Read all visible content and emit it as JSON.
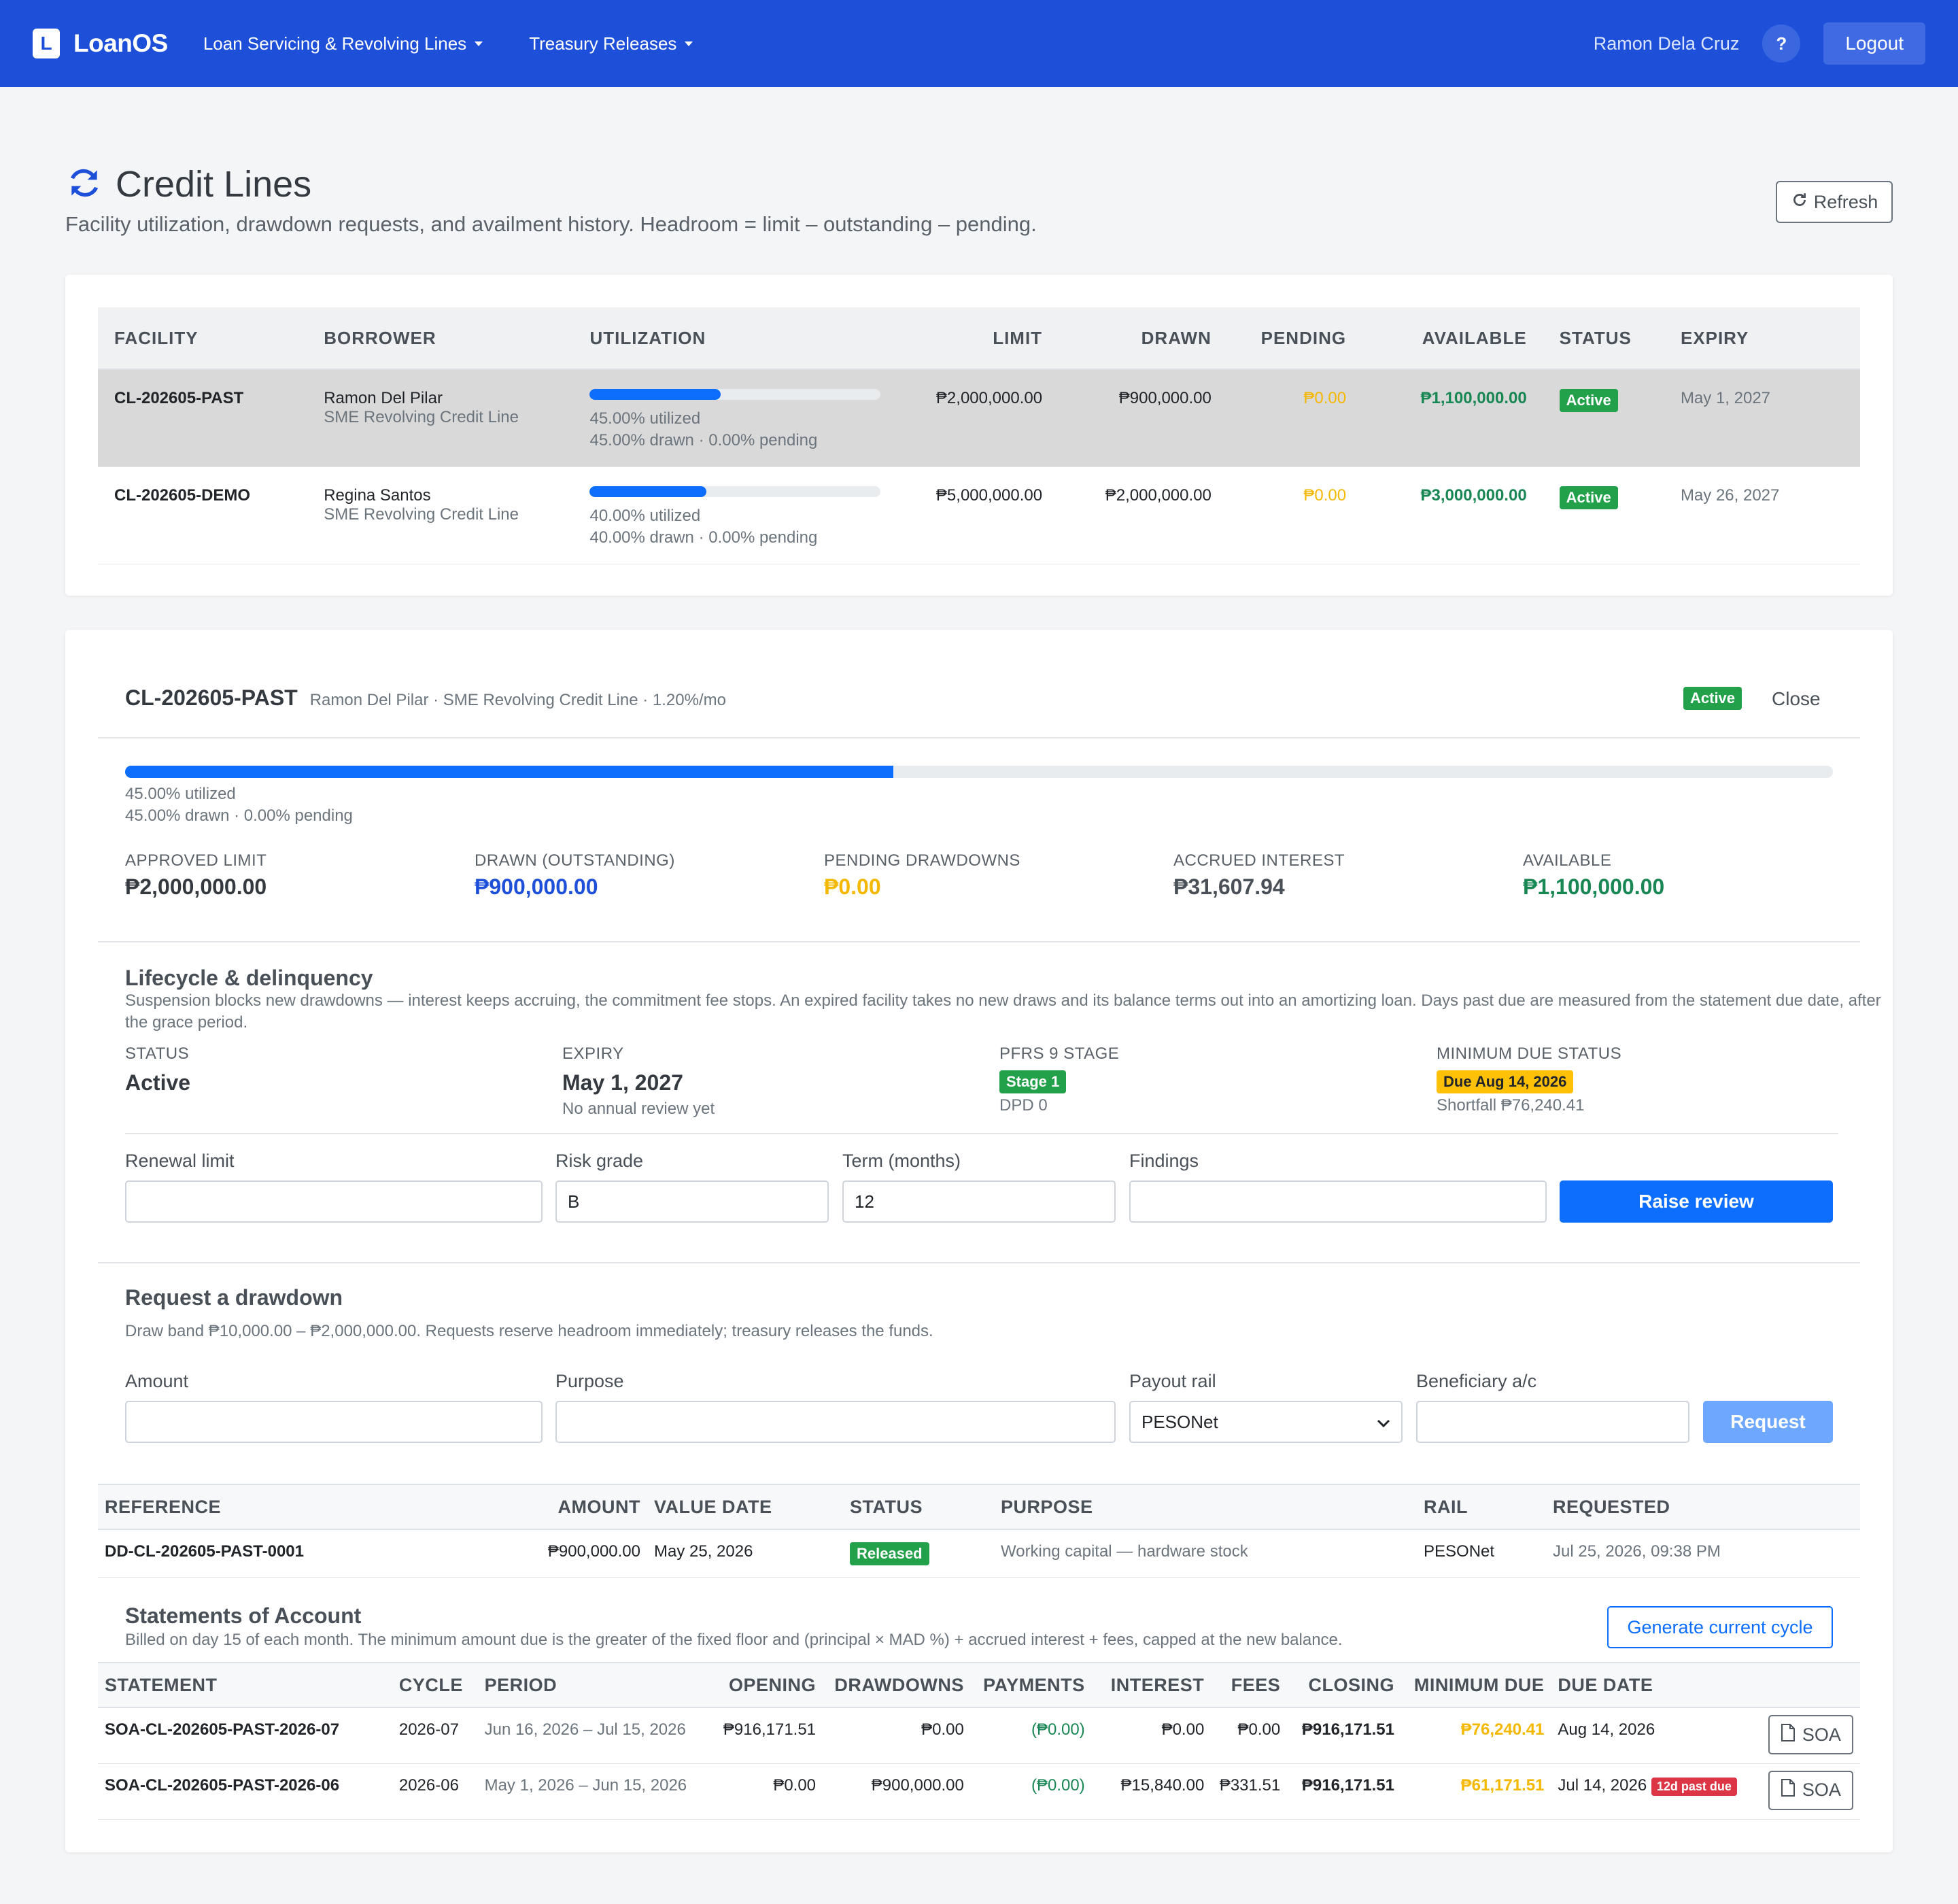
{
  "nav": {
    "brand_letter": "L",
    "brand_name": "LoanOS",
    "menu": [
      "Loan Servicing & Revolving Lines",
      "Treasury Releases"
    ],
    "user": "Ramon Dela Cruz",
    "help": "?",
    "logout": "Logout"
  },
  "header": {
    "title": "Credit Lines",
    "subtitle": "Facility utilization, drawdown requests, and availment history. Headroom = limit – outstanding – pending.",
    "refresh": "Refresh"
  },
  "facilities": {
    "columns": [
      "FACILITY",
      "BORROWER",
      "UTILIZATION",
      "LIMIT",
      "DRAWN",
      "PENDING",
      "AVAILABLE",
      "STATUS",
      "EXPIRY"
    ],
    "rows": [
      {
        "facility": "CL-202605-PAST",
        "borrower": "Ramon Del Pilar",
        "product": "SME Revolving Credit Line",
        "util_pct": 45,
        "util_text": "45.00% utilized",
        "util_sub": "45.00% drawn · 0.00% pending",
        "limit": "₱2,000,000.00",
        "drawn": "₱900,000.00",
        "pending": "₱0.00",
        "available": "₱1,100,000.00",
        "status": "Active",
        "expiry": "May 1, 2027"
      },
      {
        "facility": "CL-202605-DEMO",
        "borrower": "Regina Santos",
        "product": "SME Revolving Credit Line",
        "util_pct": 40,
        "util_text": "40.00% utilized",
        "util_sub": "40.00% drawn · 0.00% pending",
        "limit": "₱5,000,000.00",
        "drawn": "₱2,000,000.00",
        "pending": "₱0.00",
        "available": "₱3,000,000.00",
        "status": "Active",
        "expiry": "May 26, 2027"
      }
    ]
  },
  "detail": {
    "facility": "CL-202605-PAST",
    "meta": "Ramon Del Pilar · SME Revolving Credit Line · 1.20%/mo",
    "status": "Active",
    "close": "Close",
    "util_pct": 45,
    "util_text": "45.00% utilized",
    "util_sub": "45.00% drawn · 0.00% pending",
    "metrics": [
      {
        "label": "APPROVED LIMIT",
        "value": "₱2,000,000.00",
        "color": "#343a40"
      },
      {
        "label": "DRAWN (OUTSTANDING)",
        "value": "₱900,000.00",
        "color": "#1d4fd8"
      },
      {
        "label": "PENDING DRAWDOWNS",
        "value": "₱0.00",
        "color": "#f5b800"
      },
      {
        "label": "ACCRUED INTEREST",
        "value": "₱31,607.94",
        "color": "#495057"
      },
      {
        "label": "AVAILABLE",
        "value": "₱1,100,000.00",
        "color": "#198754"
      }
    ]
  },
  "lifecycle": {
    "title": "Lifecycle & delinquency",
    "desc": "Suspension blocks new drawdowns — interest keeps accruing, the commitment fee stops. An expired facility takes no new draws and its balance terms out into an amortizing loan. Days past due are measured from the statement due date, after the grace period.",
    "status_label": "STATUS",
    "status_value": "Active",
    "expiry_label": "EXPIRY",
    "expiry_value": "May 1, 2027",
    "expiry_note": "No annual review yet",
    "stage_label": "PFRS 9 STAGE",
    "stage_value": "Stage 1",
    "stage_note": "DPD 0",
    "min_label": "MINIMUM DUE STATUS",
    "min_value": "Due Aug 14, 2026",
    "min_note": "Shortfall ₱76,240.41",
    "form": {
      "renewal_label": "Renewal limit",
      "renewal_value": "",
      "risk_label": "Risk grade",
      "risk_value": "B",
      "term_label": "Term (months)",
      "term_value": "12",
      "findings_label": "Findings",
      "findings_value": "",
      "button": "Raise review"
    }
  },
  "drawdown": {
    "title": "Request a drawdown",
    "desc": "Draw band ₱10,000.00 – ₱2,000,000.00. Requests reserve headroom immediately; treasury releases the funds.",
    "amount_label": "Amount",
    "purpose_label": "Purpose",
    "rail_label": "Payout rail",
    "rail_value": "PESONet",
    "beneficiary_label": "Beneficiary a/c",
    "button": "Request",
    "columns": [
      "REFERENCE",
      "AMOUNT",
      "VALUE DATE",
      "STATUS",
      "PURPOSE",
      "RAIL",
      "REQUESTED"
    ],
    "rows": [
      {
        "reference": "DD-CL-202605-PAST-0001",
        "amount": "₱900,000.00",
        "value_date": "May 25, 2026",
        "status": "Released",
        "purpose": "Working capital — hardware stock",
        "rail": "PESONet",
        "requested": "Jul 25, 2026, 09:38 PM"
      }
    ]
  },
  "statements": {
    "title": "Statements of Account",
    "desc": "Billed on day 15 of each month. The minimum amount due is the greater of the fixed floor and (principal × MAD %) + accrued interest + fees, capped at the new balance.",
    "generate": "Generate current cycle",
    "columns": [
      "STATEMENT",
      "CYCLE",
      "PERIOD",
      "OPENING",
      "DRAWDOWNS",
      "PAYMENTS",
      "INTEREST",
      "FEES",
      "CLOSING",
      "MINIMUM DUE",
      "DUE DATE"
    ],
    "rows": [
      {
        "statement": "SOA-CL-202605-PAST-2026-07",
        "cycle": "2026-07",
        "period": "Jun 16, 2026 – Jul 15, 2026",
        "opening": "₱916,171.51",
        "drawdowns": "₱0.00",
        "payments": "(₱0.00)",
        "interest": "₱0.00",
        "fees": "₱0.00",
        "closing": "₱916,171.51",
        "min_due": "₱76,240.41",
        "due_date": "Aug 14, 2026",
        "flag": "",
        "soa": "SOA"
      },
      {
        "statement": "SOA-CL-202605-PAST-2026-06",
        "cycle": "2026-06",
        "period": "May 1, 2026 – Jun 15, 2026",
        "opening": "₱0.00",
        "drawdowns": "₱900,000.00",
        "payments": "(₱0.00)",
        "interest": "₱15,840.00",
        "fees": "₱331.51",
        "closing": "₱916,171.51",
        "min_due": "₱61,171.51",
        "due_date": "Jul 14, 2026",
        "flag": "12d past due",
        "soa": "SOA"
      }
    ]
  }
}
